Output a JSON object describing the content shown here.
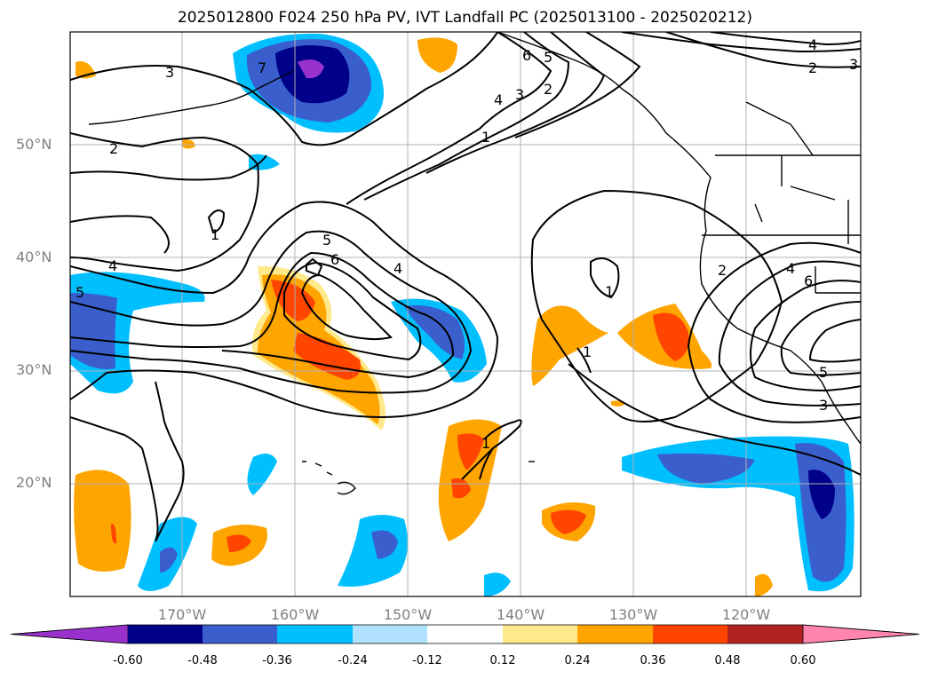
{
  "title": "2025012800 F024 250 hPa PV, IVT Landfall PC (2025013100 - 2025020212)",
  "map": {
    "lat_ticks": [
      "50°N",
      "40°N",
      "30°N",
      "20°N"
    ],
    "lon_ticks": [
      "170°W",
      "160°W",
      "150°W",
      "140°W",
      "130°W",
      "120°W"
    ],
    "contour_labels": [
      "3",
      "2",
      "1",
      "4",
      "5",
      "6",
      "7",
      "6",
      "5",
      "4",
      "3",
      "2",
      "1",
      "4",
      "2",
      "3",
      "1",
      "1",
      "2",
      "4",
      "6",
      "5",
      "3",
      "4",
      "1",
      "5"
    ]
  },
  "colorbar": {
    "labels": [
      "-0.60",
      "-0.48",
      "-0.36",
      "-0.24",
      "-0.12",
      "0.12",
      "0.24",
      "0.36",
      "0.48",
      "0.60"
    ],
    "colors": [
      "#9932cc",
      "#00008b",
      "#3a5fcd",
      "#00bfff",
      "#b0e2ff",
      "#ffffff",
      "#ffe98a",
      "#ffa500",
      "#ff4500",
      "#b22222",
      "#ff85b0"
    ]
  }
}
